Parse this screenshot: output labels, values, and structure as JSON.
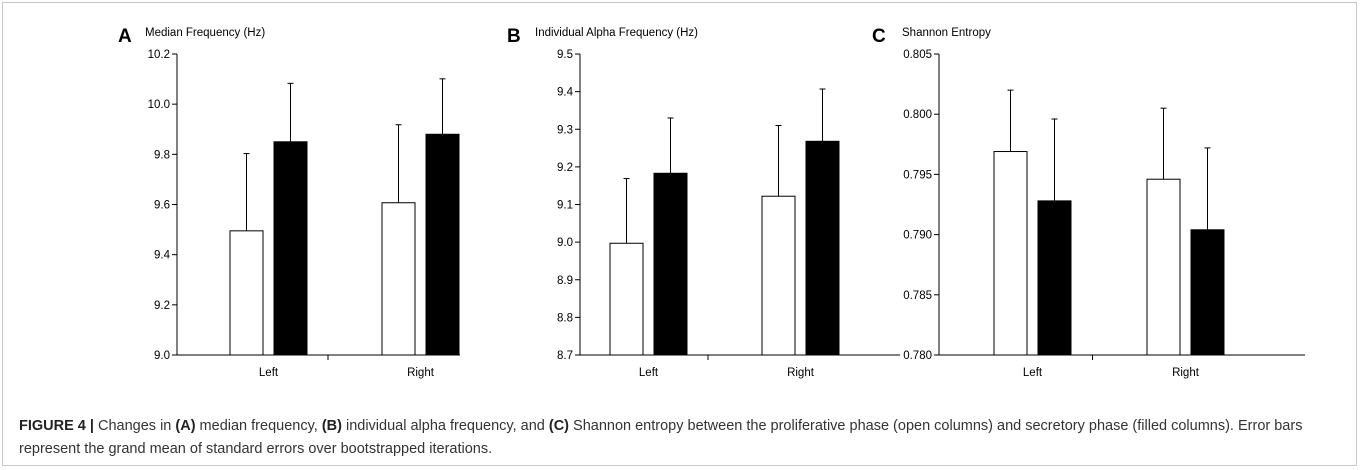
{
  "caption": {
    "label": "FIGURE 4 |",
    "t1": " Changes in ",
    "a": "(A)",
    "t2": " median frequency, ",
    "b": "(B)",
    "t3": " individual alpha frequency, and ",
    "c": "(C)",
    "t4": " Shannon entropy between the proliferative phase (open columns) and secretory phase (filled columns). Error bars represent the grand mean of standard errors over bootstrapped iterations."
  },
  "colors": {
    "open": "#ffffff",
    "filled": "#000000",
    "axis": "#000000"
  },
  "chart_data": [
    {
      "type": "bar",
      "panel": "A",
      "title": "Median Frequency (Hz)",
      "categories": [
        "Left",
        "Right"
      ],
      "ylim": [
        9.0,
        10.2
      ],
      "yticks": [
        "9.0",
        "9.2",
        "9.4",
        "9.6",
        "9.8",
        "10.0",
        "10.2"
      ],
      "series": [
        {
          "values": [
            9.495,
            9.607
          ],
          "errors": [
            0.308,
            0.311
          ],
          "style": "open"
        },
        {
          "values": [
            9.85,
            9.88
          ],
          "errors": [
            0.233,
            0.221
          ],
          "style": "filled"
        }
      ]
    },
    {
      "type": "bar",
      "panel": "B",
      "title": "Individual Alpha Frequency (Hz)",
      "categories": [
        "Left",
        "Right"
      ],
      "ylim": [
        8.7,
        9.5
      ],
      "yticks": [
        "8.7",
        "8.8",
        "8.9",
        "9.0",
        "9.1",
        "9.2",
        "9.3",
        "9.4",
        "9.5"
      ],
      "series": [
        {
          "values": [
            8.997,
            9.122
          ],
          "errors": [
            0.172,
            0.188
          ],
          "style": "open"
        },
        {
          "values": [
            9.183,
            9.268
          ],
          "errors": [
            0.147,
            0.139
          ],
          "style": "filled"
        }
      ]
    },
    {
      "type": "bar",
      "panel": "C",
      "title": "Shannon Entropy",
      "categories": [
        "Left",
        "Right"
      ],
      "ylim": [
        0.78,
        0.805
      ],
      "yticks": [
        "0.780",
        "0.785",
        "0.790",
        "0.795",
        "0.800",
        "0.805"
      ],
      "series": [
        {
          "values": [
            0.7969,
            0.7946
          ],
          "errors": [
            0.0051,
            0.0059
          ],
          "style": "open"
        },
        {
          "values": [
            0.7928,
            0.7904
          ],
          "errors": [
            0.0068,
            0.0068
          ],
          "style": "filled"
        }
      ]
    }
  ]
}
